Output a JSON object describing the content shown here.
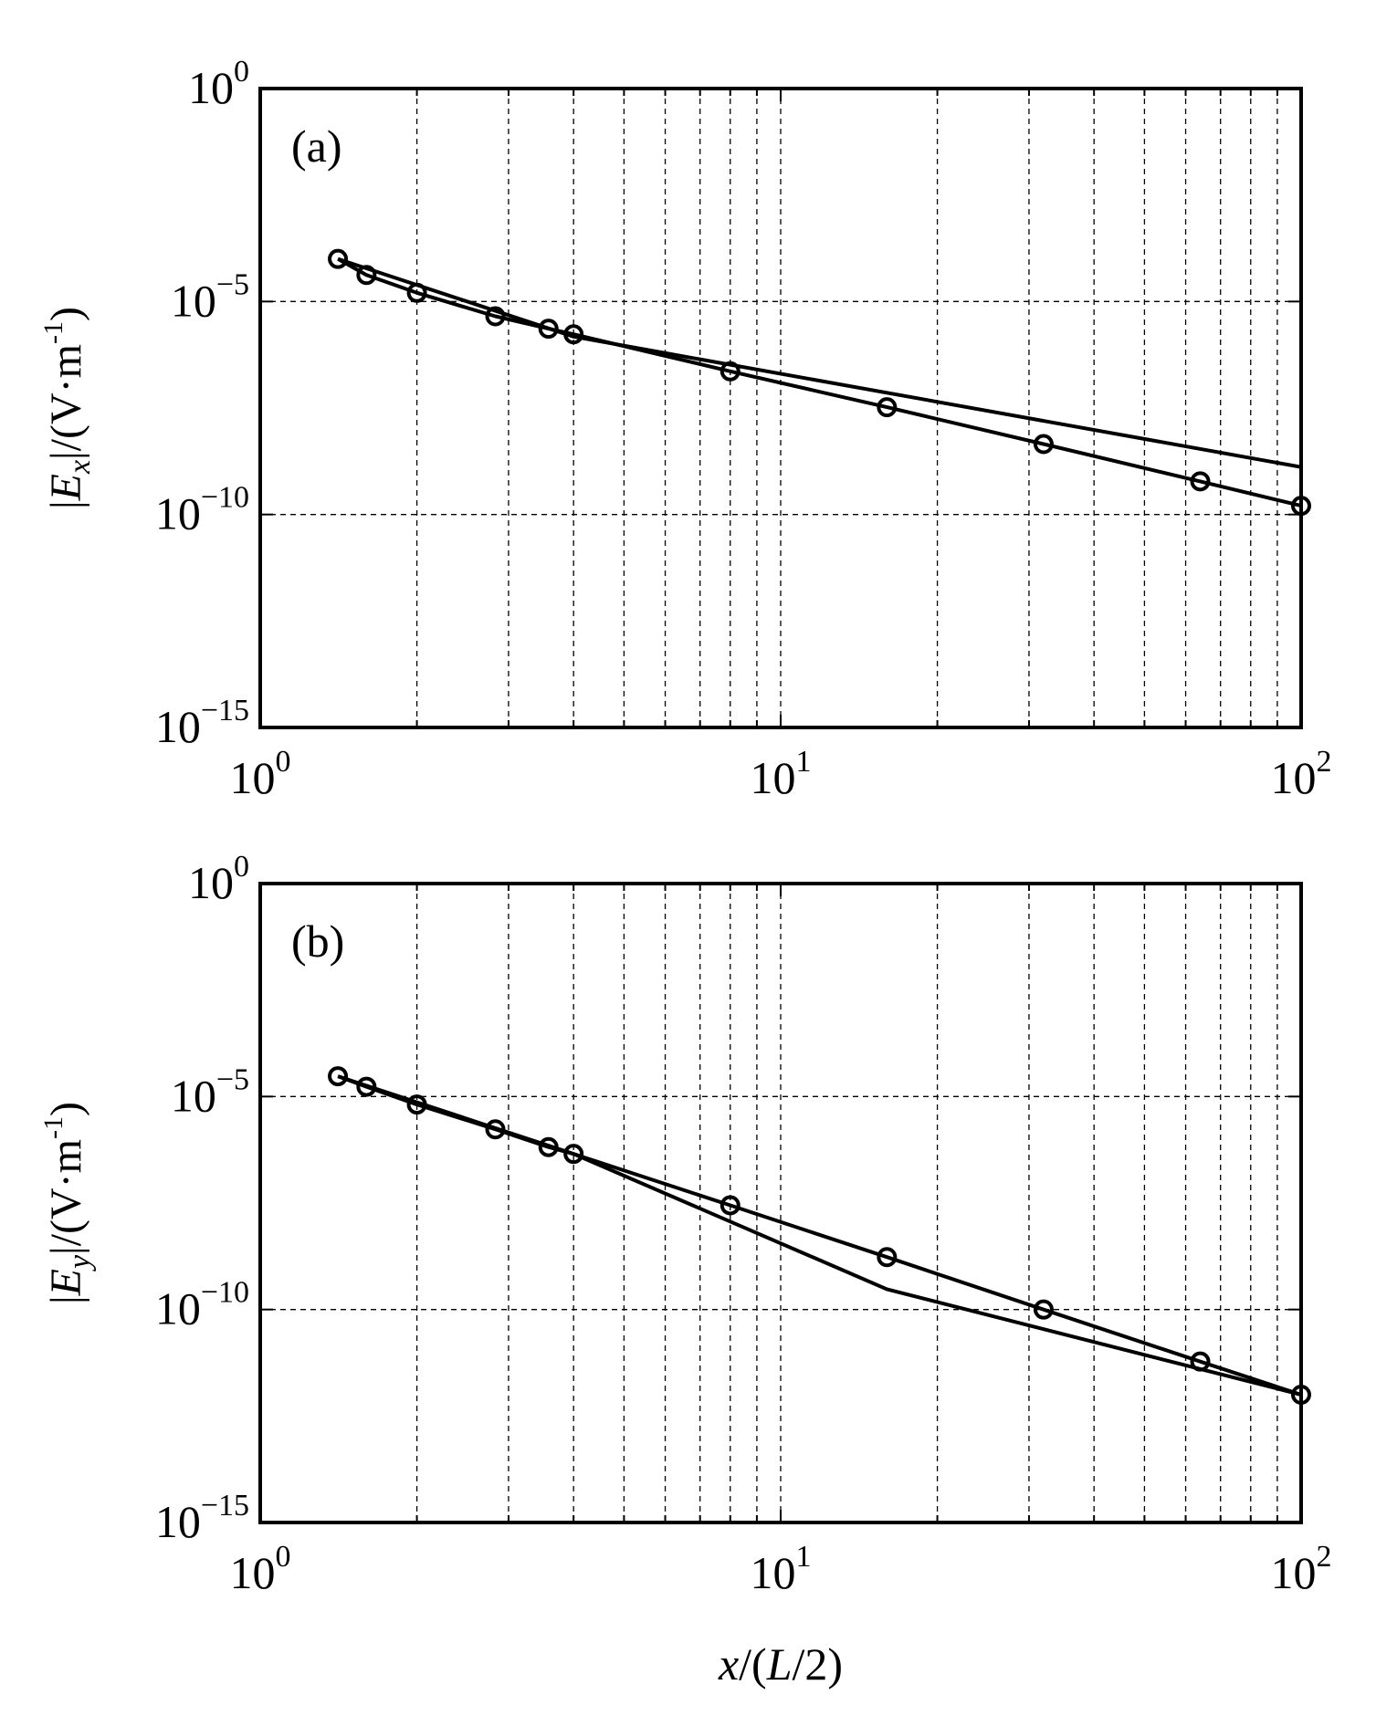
{
  "chart_data": [
    {
      "type": "line",
      "panel_label": "(a)",
      "ylabel": {
        "pre": "|",
        "sym": "E",
        "sub": "x",
        "post": "|/(V·m",
        "sup": "-1",
        "close": ")"
      },
      "xscale": "log",
      "yscale": "log",
      "xlim": [
        1,
        100
      ],
      "ylim": [
        1e-15,
        1
      ],
      "x_tick_labels": [
        {
          "base": "10",
          "exp": "0"
        },
        {
          "base": "10",
          "exp": "1"
        },
        {
          "base": "10",
          "exp": "2"
        }
      ],
      "y_tick_labels": [
        {
          "base": "10",
          "exp": "0"
        },
        {
          "base": "10",
          "exp": "−5"
        },
        {
          "base": "10",
          "exp": "−10"
        },
        {
          "base": "10",
          "exp": "−15"
        }
      ],
      "grid": true,
      "series": [
        {
          "marker": "circle",
          "x": [
            1.41,
            1.6,
            2.0,
            2.83,
            3.58,
            4.0,
            8.0,
            16.0,
            32.0,
            64.0,
            100.0
          ],
          "y": [
            0.0001,
            4.2e-05,
            1.6e-05,
            4.5e-06,
            2.3e-06,
            1.7e-06,
            2.3e-07,
            3.3e-08,
            4.5e-09,
            6e-10,
            1.6e-10
          ]
        },
        {
          "marker": "none",
          "x": [
            1.41,
            4.0,
            100.0
          ],
          "y": [
            0.0001,
            1.5e-06,
            1.3e-09
          ]
        }
      ]
    },
    {
      "type": "line",
      "panel_label": "(b)",
      "xlabel": {
        "sym1": "x",
        "mid": "/(",
        "sym2": "L",
        "post": "/2)"
      },
      "ylabel": {
        "pre": "|",
        "sym": "E",
        "sub": "y",
        "post": "|/(V·m",
        "sup": "-1",
        "close": ")"
      },
      "xscale": "log",
      "yscale": "log",
      "xlim": [
        1,
        100
      ],
      "ylim": [
        1e-15,
        1
      ],
      "x_tick_labels": [
        {
          "base": "10",
          "exp": "0"
        },
        {
          "base": "10",
          "exp": "1"
        },
        {
          "base": "10",
          "exp": "2"
        }
      ],
      "y_tick_labels": [
        {
          "base": "10",
          "exp": "0"
        },
        {
          "base": "10",
          "exp": "−5"
        },
        {
          "base": "10",
          "exp": "−10"
        },
        {
          "base": "10",
          "exp": "−15"
        }
      ],
      "grid": true,
      "series": [
        {
          "marker": "circle",
          "x": [
            1.41,
            1.6,
            2.0,
            2.83,
            3.58,
            4.0,
            8.0,
            16.0,
            32.0,
            64.0,
            100.0
          ],
          "y": [
            3e-05,
            1.7e-05,
            6.5e-06,
            1.7e-06,
            6.5e-07,
            4.5e-07,
            2.8e-08,
            1.7e-09,
            1e-10,
            6e-12,
            1e-12
          ]
        },
        {
          "marker": "none",
          "x": [
            1.41,
            4.0,
            16.0,
            100.0
          ],
          "y": [
            3e-05,
            4.5e-07,
            3e-10,
            1e-12
          ]
        }
      ]
    }
  ]
}
